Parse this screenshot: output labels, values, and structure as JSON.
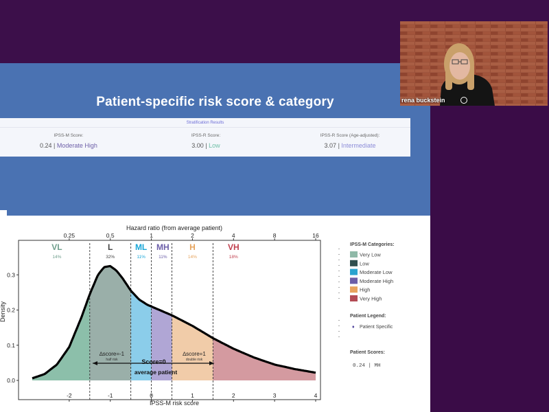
{
  "slide": {
    "title": "Patient-specific risk score & category",
    "results_header": "Stratification Results",
    "scores": [
      {
        "label": "IPSS-M Score:",
        "value": "0.24 |",
        "category": "Moderate High",
        "color": "#6d5fa8"
      },
      {
        "label": "IPSS-R Score:",
        "value": "3.00 |",
        "category": "Low",
        "color": "#6fbfa7"
      },
      {
        "label": "IPSS-R Score (Age-adjusted):",
        "value": "3.07 |",
        "category": "Intermediate",
        "color": "#8c8cd8"
      }
    ]
  },
  "chart_data": {
    "type": "area",
    "title": "",
    "top_axis_label": "Hazard ratio (from average patient)",
    "top_ticks": [
      "0.25",
      "0.5",
      "1",
      "2",
      "4",
      "8",
      "16"
    ],
    "xlabel": "IPSS-M risk score",
    "ylabel": "Density",
    "xlim": [
      -3.0,
      4.0
    ],
    "ylim": [
      0,
      0.36
    ],
    "x_ticks": [
      "-2",
      "-1",
      "0",
      "1",
      "2",
      "3",
      "4"
    ],
    "y_ticks": [
      "0.0",
      "0.1",
      "0.2",
      "0.3"
    ],
    "density": {
      "x": [
        -2.9,
        -2.6,
        -2.3,
        -2.0,
        -1.7,
        -1.5,
        -1.3,
        -1.15,
        -1.0,
        -0.85,
        -0.7,
        -0.5,
        -0.3,
        -0.1,
        0.0,
        0.2,
        0.5,
        1.0,
        1.5,
        2.0,
        2.5,
        3.0,
        3.5,
        4.0
      ],
      "y": [
        0.006,
        0.018,
        0.045,
        0.095,
        0.18,
        0.245,
        0.3,
        0.322,
        0.325,
        0.312,
        0.29,
        0.255,
        0.23,
        0.215,
        0.21,
        0.2,
        0.185,
        0.155,
        0.12,
        0.09,
        0.065,
        0.045,
        0.032,
        0.022
      ]
    },
    "categories": [
      {
        "code": "VL",
        "percent": "14%",
        "from": -3.0,
        "to": -1.5,
        "color": "#7fb8a1"
      },
      {
        "code": "L",
        "percent": "32%",
        "from": -1.5,
        "to": -0.5,
        "color": "#8fa6a0"
      },
      {
        "code": "ML",
        "percent": "11%",
        "from": -0.5,
        "to": 0.0,
        "color": "#7ec8e8"
      },
      {
        "code": "MH",
        "percent": "11%",
        "from": 0.0,
        "to": 0.5,
        "color": "#a79cd0"
      },
      {
        "code": "H",
        "percent": "14%",
        "from": 0.5,
        "to": 1.5,
        "color": "#efc7a0"
      },
      {
        "code": "VH",
        "percent": "18%",
        "from": 1.5,
        "to": 4.0,
        "color": "#cf8f96"
      }
    ],
    "label_colors": {
      "VL": "#6f9e8c",
      "L": "#444444",
      "ML": "#1aa7d8",
      "MH": "#6b5ea8",
      "H": "#e6a35c",
      "VH": "#c0404f"
    },
    "annotations": {
      "left_delta": "∆score=-1",
      "left_sub": "half risk",
      "right_delta": "∆score=1",
      "right_sub": "double risk",
      "center": "Score=0",
      "center_sub": "average patient"
    },
    "legend": {
      "title": "IPSS-M Categories:",
      "items": [
        {
          "label": "Very Low",
          "color": "#8fb9a8"
        },
        {
          "label": "Low",
          "color": "#2f4f4f"
        },
        {
          "label": "Moderate Low",
          "color": "#2aa4cf"
        },
        {
          "label": "Moderate High",
          "color": "#6b5ea8"
        },
        {
          "label": "High",
          "color": "#e8a35e"
        },
        {
          "label": "Very High",
          "color": "#b34b55"
        }
      ],
      "patient_legend_title": "Patient Legend:",
      "patient_specific": "Patient Specific",
      "patient_scores_title": "Patient Scores:",
      "patient_scores_value": "0.24 | MH"
    }
  },
  "webcam": {
    "name": "rena buckstein"
  }
}
